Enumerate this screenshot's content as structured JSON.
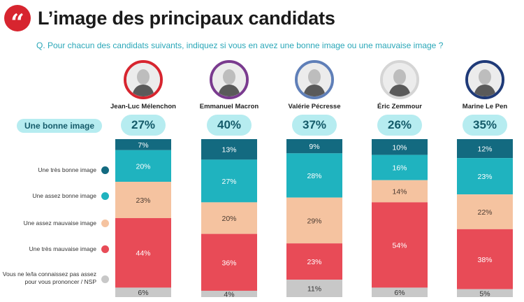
{
  "header": {
    "quote_icon": "quote-icon",
    "title": "L’image des principaux candidats"
  },
  "question": "Q. Pour chacun des candidats suivants, indiquez si vous en avez une bonne image ou une mauvaise image ?",
  "colors": {
    "very_good": "#136a80",
    "fairly_good": "#1fb3bf",
    "fairly_bad": "#f5c3a0",
    "very_bad": "#e84b57",
    "nsp": "#c8c8c8",
    "highlight": "#b6ecf0"
  },
  "candidates": [
    {
      "name": "Jean-Luc Mélenchon",
      "ring": "#d7252f",
      "good_total": "27%"
    },
    {
      "name": "Emmanuel Macron",
      "ring": "#7a3b8f",
      "good_total": "40%"
    },
    {
      "name": "Valérie Pécresse",
      "ring": "#5f7fb8",
      "good_total": "37%"
    },
    {
      "name": "Éric Zemmour",
      "ring": "#d5d5d5",
      "good_total": "26%"
    },
    {
      "name": "Marine Le Pen",
      "ring": "#1f3a78",
      "good_total": "35%"
    }
  ],
  "good_image_label": "Une bonne image",
  "legend": [
    {
      "label": "Une très bonne image",
      "color": "#136a80"
    },
    {
      "label": "Une assez bonne image",
      "color": "#1fb3bf"
    },
    {
      "label": "Une assez mauvaise image",
      "color": "#f5c3a0"
    },
    {
      "label": "Une très mauvaise image",
      "color": "#e84b57"
    },
    {
      "label": "Vous ne le/la connaissez pas assez pour vous prononcer / NSP",
      "color": "#c8c8c8"
    }
  ],
  "chart_data": {
    "type": "bar",
    "stacked": true,
    "categories": [
      "Jean-Luc Mélenchon",
      "Emmanuel Macron",
      "Valérie Pécresse",
      "Éric Zemmour",
      "Marine Le Pen"
    ],
    "series": [
      {
        "name": "Une très bonne image",
        "values": [
          7,
          13,
          9,
          10,
          12
        ]
      },
      {
        "name": "Une assez bonne image",
        "values": [
          20,
          27,
          28,
          16,
          23
        ]
      },
      {
        "name": "Une assez mauvaise image",
        "values": [
          23,
          20,
          29,
          14,
          22
        ]
      },
      {
        "name": "Une très mauvaise image",
        "values": [
          44,
          36,
          23,
          54,
          38
        ]
      },
      {
        "name": "Vous ne le/la connaissez pas assez pour vous prononcer / NSP",
        "values": [
          6,
          4,
          11,
          6,
          5
        ]
      }
    ],
    "unit": "%"
  }
}
